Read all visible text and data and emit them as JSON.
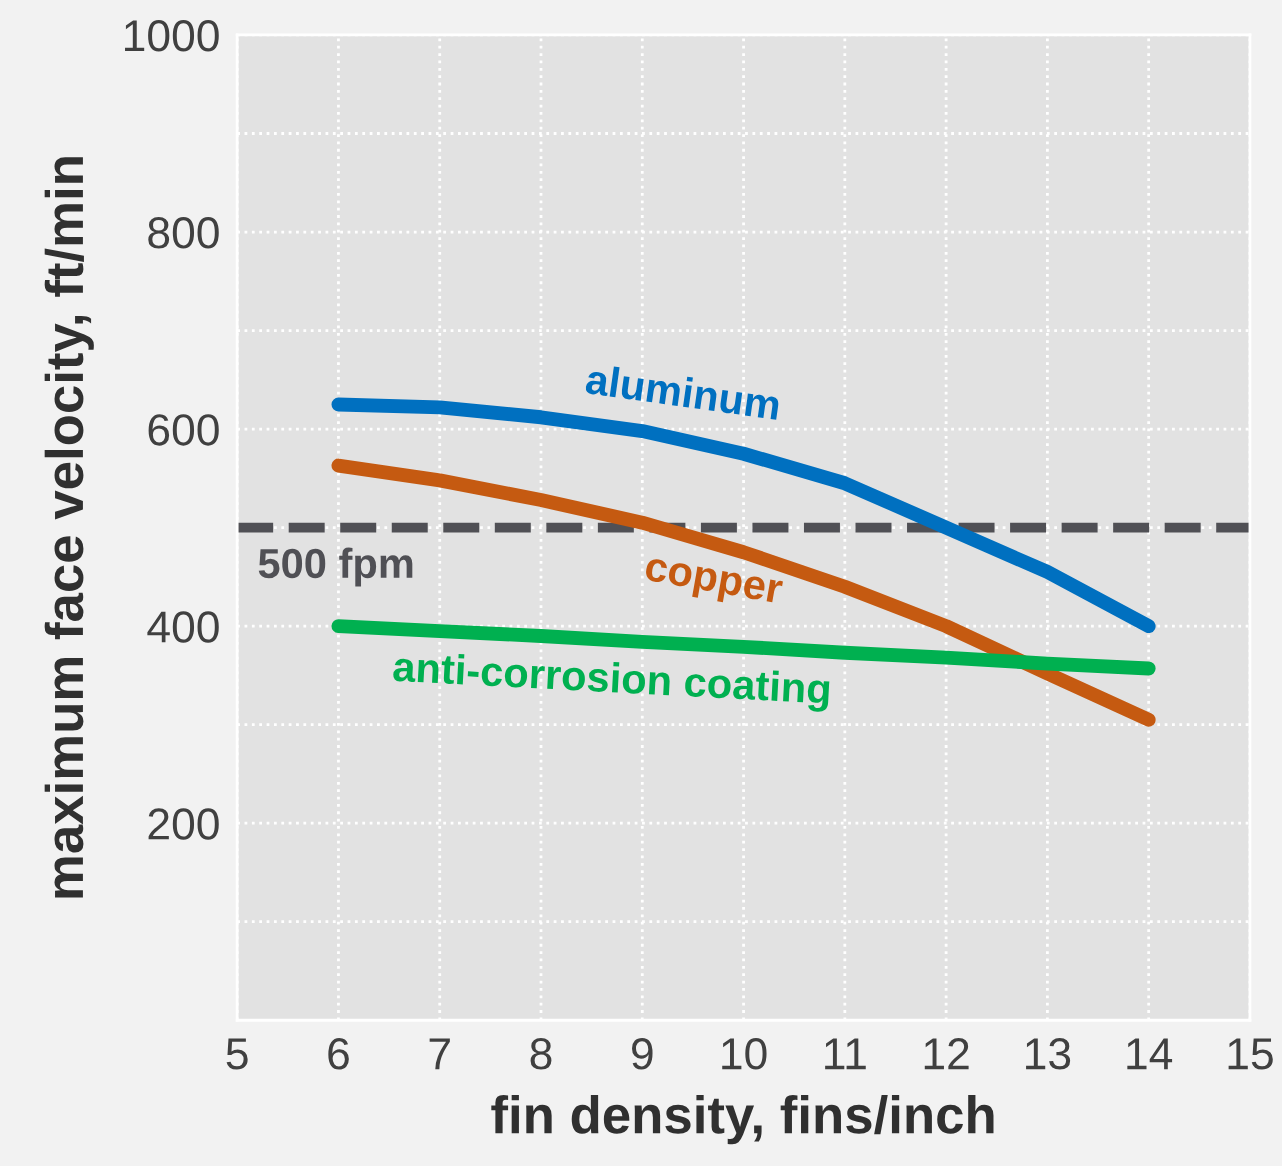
{
  "chart_data": {
    "type": "line",
    "xlabel": "fin density, fins/inch",
    "ylabel": "maximum face velocity, ft/min",
    "x": [
      6,
      7,
      8,
      9,
      10,
      11,
      12,
      13,
      14
    ],
    "series": [
      {
        "name": "aluminum",
        "color": "#0070c0",
        "values": [
          625,
          622,
          612,
          598,
          575,
          545,
          500,
          455,
          400
        ]
      },
      {
        "name": "copper",
        "color": "#c55a11",
        "values": [
          563,
          548,
          528,
          505,
          475,
          440,
          400,
          352,
          305
        ]
      },
      {
        "name": "anti-corrosion coating",
        "color": "#00b050",
        "values": [
          400,
          395,
          390,
          384,
          379,
          373,
          368,
          362,
          357
        ]
      }
    ],
    "xlim": [
      5,
      15
    ],
    "xticks": [
      5,
      6,
      7,
      8,
      9,
      10,
      11,
      12,
      13,
      14,
      15
    ],
    "ylim": [
      0,
      1000
    ],
    "yticks": [
      {
        "value": 100,
        "label": null
      },
      200,
      {
        "value": 300,
        "label": null
      },
      400,
      {
        "value": 500,
        "label": null
      },
      600,
      {
        "value": 700,
        "label": null
      },
      800,
      {
        "value": 900,
        "label": null
      },
      1000
    ],
    "ref_lines": [
      {
        "axis": "y",
        "value": 500,
        "label": "500 fpm",
        "color": "#505055",
        "line_style": "dashed"
      }
    ],
    "grid": true,
    "marker": "none",
    "line_style": "solid"
  }
}
